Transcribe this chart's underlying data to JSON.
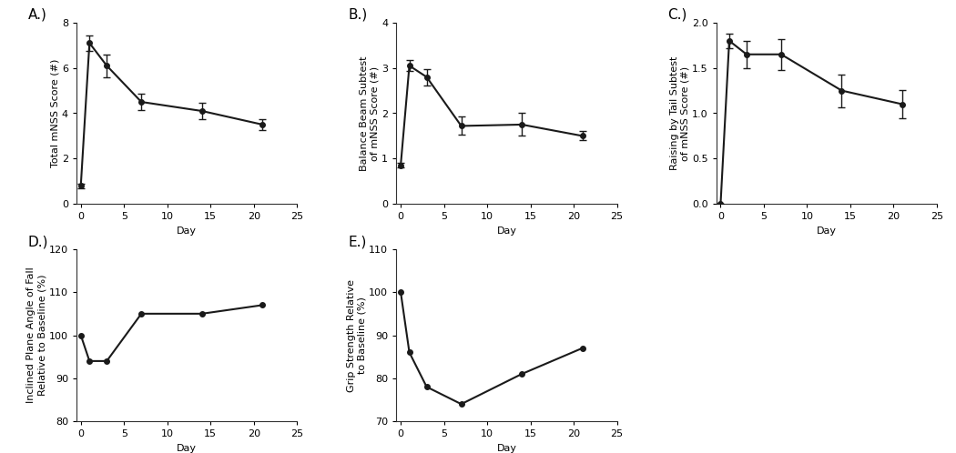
{
  "A": {
    "label": "A.)",
    "x": [
      0,
      1,
      3,
      7,
      14,
      21
    ],
    "y": [
      0.8,
      7.1,
      6.1,
      4.5,
      4.1,
      3.5
    ],
    "yerr": [
      0.1,
      0.35,
      0.5,
      0.35,
      0.35,
      0.25
    ],
    "ylabel": "Total mNSS Score (#)",
    "xlabel": "Day",
    "ylim": [
      0,
      8
    ],
    "yticks": [
      0,
      2,
      4,
      6,
      8
    ],
    "xlim": [
      -0.5,
      25
    ],
    "xticks": [
      0,
      5,
      10,
      15,
      20,
      25
    ]
  },
  "B": {
    "label": "B.)",
    "x": [
      0,
      1,
      3,
      7,
      14,
      21
    ],
    "y": [
      0.85,
      3.05,
      2.8,
      1.72,
      1.75,
      1.5
    ],
    "yerr": [
      0.05,
      0.12,
      0.18,
      0.2,
      0.25,
      0.1
    ],
    "ylabel": "Balance Beam Subtest\nof mNSS Score (#)",
    "xlabel": "Day",
    "ylim": [
      0,
      4
    ],
    "yticks": [
      0,
      1,
      2,
      3,
      4
    ],
    "xlim": [
      -0.5,
      25
    ],
    "xticks": [
      0,
      5,
      10,
      15,
      20,
      25
    ]
  },
  "C": {
    "label": "C.)",
    "x": [
      0,
      1,
      3,
      7,
      14,
      21
    ],
    "y": [
      0.0,
      1.8,
      1.65,
      1.65,
      1.25,
      1.1
    ],
    "yerr": [
      0.0,
      0.08,
      0.15,
      0.17,
      0.18,
      0.16
    ],
    "ylabel": "Raising by Tail Subtest\nof mNSS Score (#)",
    "xlabel": "Day",
    "ylim": [
      0.0,
      2.0
    ],
    "yticks": [
      0.0,
      0.5,
      1.0,
      1.5,
      2.0
    ],
    "xlim": [
      -0.5,
      25
    ],
    "xticks": [
      0,
      5,
      10,
      15,
      20,
      25
    ]
  },
  "D": {
    "label": "D.)",
    "x": [
      0,
      1,
      3,
      7,
      14,
      21
    ],
    "y": [
      100,
      94,
      94,
      105,
      105,
      107
    ],
    "yerr": [
      0,
      0,
      0,
      0,
      0,
      0
    ],
    "ylabel": "Inclined Plane Angle of Fall\nRelative to Baseline (%)",
    "xlabel": "Day",
    "ylim": [
      80,
      120
    ],
    "yticks": [
      80,
      90,
      100,
      110,
      120
    ],
    "xlim": [
      -0.5,
      25
    ],
    "xticks": [
      0,
      5,
      10,
      15,
      20,
      25
    ]
  },
  "E": {
    "label": "E.)",
    "x": [
      0,
      1,
      3,
      7,
      14,
      21
    ],
    "y": [
      100,
      86,
      78,
      74,
      81,
      87
    ],
    "yerr": [
      0,
      0,
      0,
      0,
      0,
      0
    ],
    "ylabel": "Grip Strength Relative\nto Baseline (%)",
    "xlabel": "Day",
    "ylim": [
      70,
      110
    ],
    "yticks": [
      70,
      80,
      90,
      100,
      110
    ],
    "xlim": [
      -0.5,
      25
    ],
    "xticks": [
      0,
      5,
      10,
      15,
      20,
      25
    ]
  },
  "line_color": "#1a1a1a",
  "marker": "o",
  "markersize": 4,
  "linewidth": 1.5,
  "capsize": 3,
  "label_fontsize": 8,
  "tick_fontsize": 8,
  "panel_label_fontsize": 11,
  "background_color": "#ffffff"
}
